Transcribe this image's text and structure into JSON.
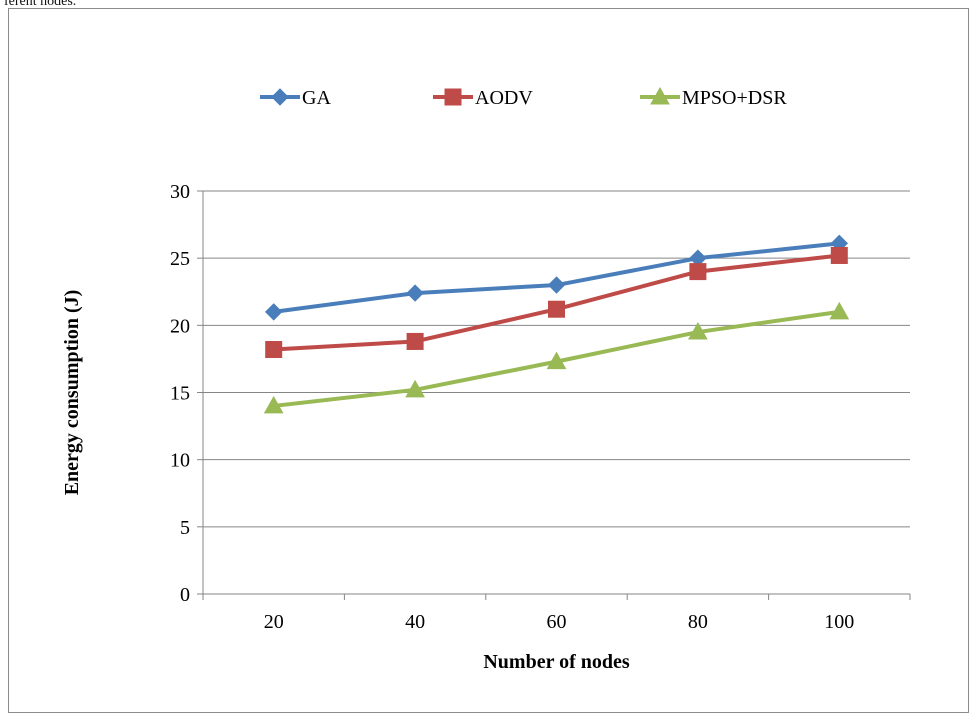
{
  "header_fragment": "ferent nodes.",
  "chart_data": {
    "type": "line",
    "title": "",
    "xlabel": "Number of nodes",
    "ylabel": "Energy consumption (J)",
    "categories": [
      "20",
      "40",
      "60",
      "80",
      "100"
    ],
    "ylim": [
      0,
      30
    ],
    "yticks": [
      0,
      5,
      10,
      15,
      20,
      25,
      30
    ],
    "grid": "horizontal",
    "legend_position": "top",
    "series": [
      {
        "name": "GA",
        "color": "#4a7ebb",
        "marker": "diamond",
        "values": [
          21.0,
          22.4,
          23.0,
          25.0,
          26.1
        ]
      },
      {
        "name": "AODV",
        "color": "#be4b48",
        "marker": "square",
        "values": [
          18.2,
          18.8,
          21.2,
          24.0,
          25.2
        ]
      },
      {
        "name": "MPSO+DSR",
        "color": "#98b954",
        "marker": "triangle",
        "values": [
          14.0,
          15.2,
          17.3,
          19.5,
          21.0
        ]
      }
    ]
  }
}
